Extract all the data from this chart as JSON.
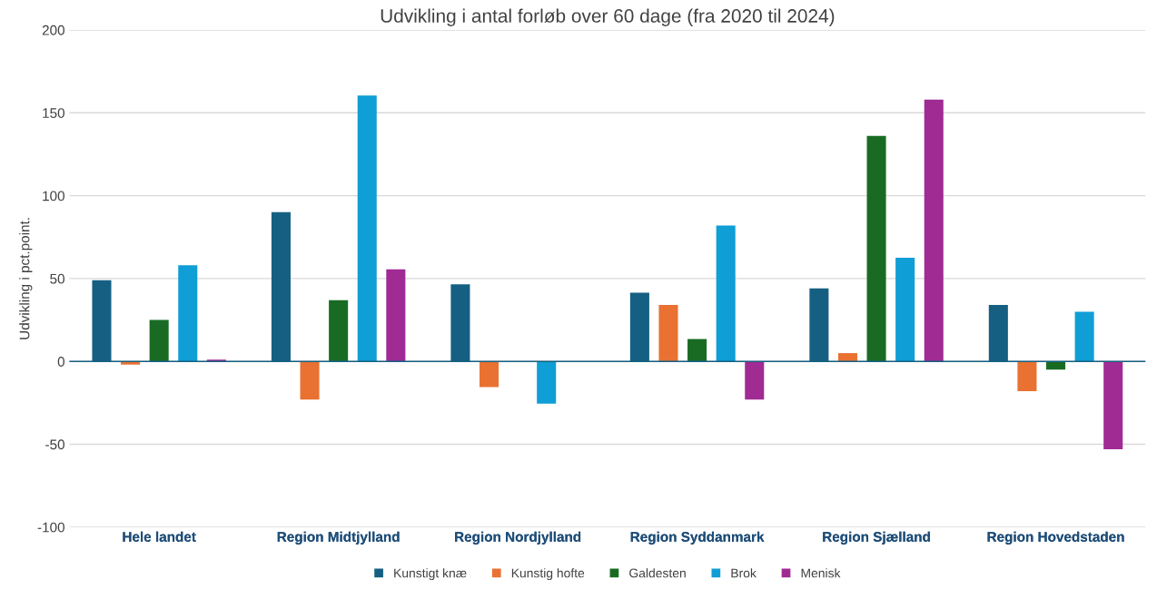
{
  "chart_data": {
    "type": "bar",
    "title": "Udvikling i antal forløb over 60 dage (fra 2020 til 2024)",
    "ylabel": "Udvikling i pct.point.",
    "categories": [
      "Hele landet",
      "Region Midtjylland",
      "Region Nordjylland",
      "Region Syddanmark",
      "Region Sjælland",
      "Region Hovedstaden"
    ],
    "series": [
      {
        "name": "Kunstigt knæ",
        "color": "#156082",
        "values": [
          49,
          90,
          46.5,
          41.5,
          44,
          34
        ]
      },
      {
        "name": "Kunstig hofte",
        "color": "#e97132",
        "values": [
          -2,
          -23,
          -15.5,
          34,
          5,
          -18
        ]
      },
      {
        "name": "Galdesten",
        "color": "#196b24",
        "values": [
          25,
          37,
          0,
          13.5,
          136,
          -5
        ]
      },
      {
        "name": "Brok",
        "color": "#0f9ed5",
        "values": [
          58,
          160.5,
          -25.5,
          82,
          62.5,
          30
        ]
      },
      {
        "name": "Menisk",
        "color": "#a02b93",
        "values": [
          1,
          55.5,
          0,
          -23,
          158,
          -53
        ]
      }
    ],
    "ylim": [
      -100,
      200
    ],
    "yticks": [
      -100,
      -50,
      0,
      50,
      100,
      150,
      200
    ],
    "ref_lines": [
      {
        "axis": "y",
        "value": 0,
        "color": "#156082"
      }
    ],
    "grid": "y",
    "legend": "bottom"
  }
}
